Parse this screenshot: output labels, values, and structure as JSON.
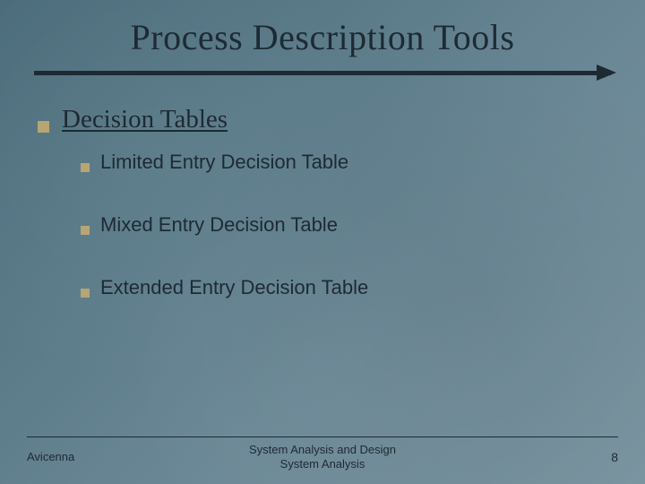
{
  "title": "Process Description Tools",
  "section": {
    "heading": "Decision Tables",
    "items": [
      "Limited Entry Decision Table",
      "Mixed Entry Decision Table",
      "Extended Entry Decision Table"
    ]
  },
  "footer": {
    "left": "Avicenna",
    "center_line1": "System Analysis and Design",
    "center_line2": "System Analysis",
    "page": "8"
  },
  "style": {
    "bullet_color": "#b8a572",
    "text_color": "#1d2a34",
    "bg_gradient_from": "#4a6b7a",
    "bg_gradient_to": "#7a94a0",
    "title_fontsize": 40,
    "heading_fontsize": 29,
    "item_fontsize": 22,
    "footer_fontsize": 13
  }
}
